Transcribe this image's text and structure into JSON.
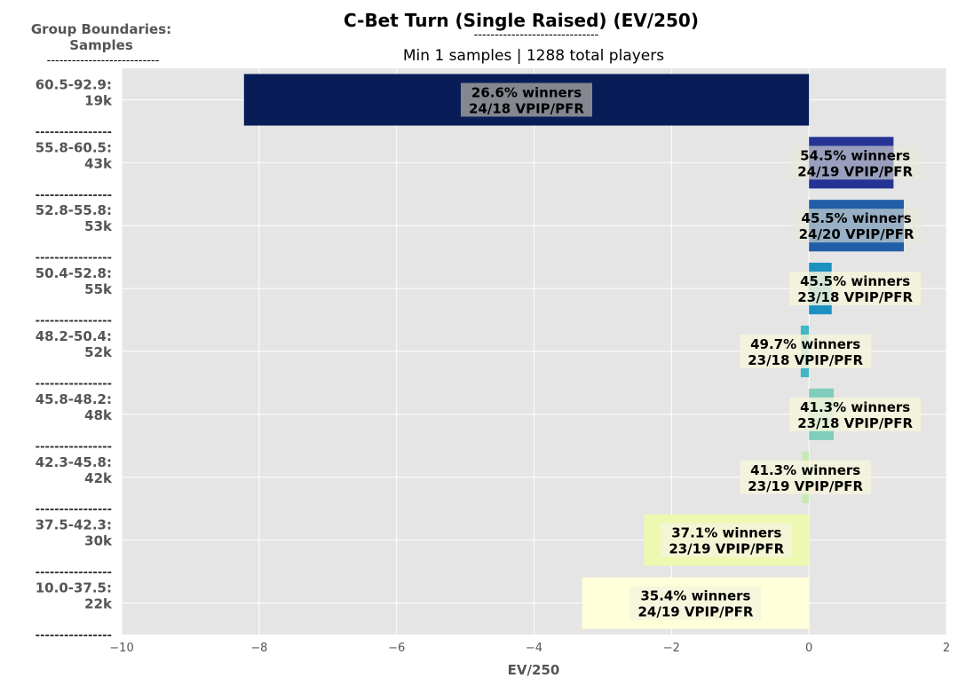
{
  "chart_data": {
    "type": "bar",
    "orientation": "horizontal",
    "title": "C-Bet Turn (Single Raised) (EV/250)",
    "title_underline": "------------------------------",
    "subtitle": "Min 1 samples | 1288 total players",
    "y_header": "Group Boundaries:",
    "y_header_2": "Samples",
    "y_header_underline": "---------------------------",
    "group_separator": "----------------",
    "xlabel": "EV/250",
    "xlim": [
      -10,
      2
    ],
    "xticks": [
      -10,
      -8,
      -6,
      -4,
      -2,
      0,
      2
    ],
    "xtick_labels": [
      "−10",
      "−8",
      "−6",
      "−4",
      "−2",
      "0",
      "2"
    ],
    "grid": true,
    "background": "#e5e5e5",
    "groups": [
      {
        "range": "60.5-92.9:",
        "samples": "19k",
        "value": -8.22,
        "winners": "26.6% winners",
        "vpip_pfr": "24/18 VPIP/PFR",
        "color": "#081d58"
      },
      {
        "range": "55.8-60.5:",
        "samples": "43k",
        "value": 1.23,
        "winners": "54.5% winners",
        "vpip_pfr": "24/19 VPIP/PFR",
        "color": "#253494"
      },
      {
        "range": "52.8-55.8:",
        "samples": "53k",
        "value": 1.38,
        "winners": "45.5% winners",
        "vpip_pfr": "24/20 VPIP/PFR",
        "color": "#225ea8"
      },
      {
        "range": "50.4-52.8:",
        "samples": "55k",
        "value": 0.33,
        "winners": "45.5% winners",
        "vpip_pfr": "23/18 VPIP/PFR",
        "color": "#1d91c0"
      },
      {
        "range": "48.2-50.4:",
        "samples": "52k",
        "value": -0.12,
        "winners": "49.7% winners",
        "vpip_pfr": "23/18 VPIP/PFR",
        "color": "#41b6c4"
      },
      {
        "range": "45.8-48.2:",
        "samples": "48k",
        "value": 0.36,
        "winners": "41.3% winners",
        "vpip_pfr": "23/18 VPIP/PFR",
        "color": "#7fcdbb"
      },
      {
        "range": "42.3-45.8:",
        "samples": "42k",
        "value": -0.1,
        "winners": "41.3% winners",
        "vpip_pfr": "23/19 VPIP/PFR",
        "color": "#c7e9b4"
      },
      {
        "range": "37.5-42.3:",
        "samples": "30k",
        "value": -2.4,
        "winners": "37.1% winners",
        "vpip_pfr": "23/19 VPIP/PFR",
        "color": "#edf8b1"
      },
      {
        "range": "10.0-37.5:",
        "samples": "22k",
        "value": -3.3,
        "winners": "35.4% winners",
        "vpip_pfr": "24/19 VPIP/PFR",
        "color": "#ffffd9"
      }
    ]
  }
}
